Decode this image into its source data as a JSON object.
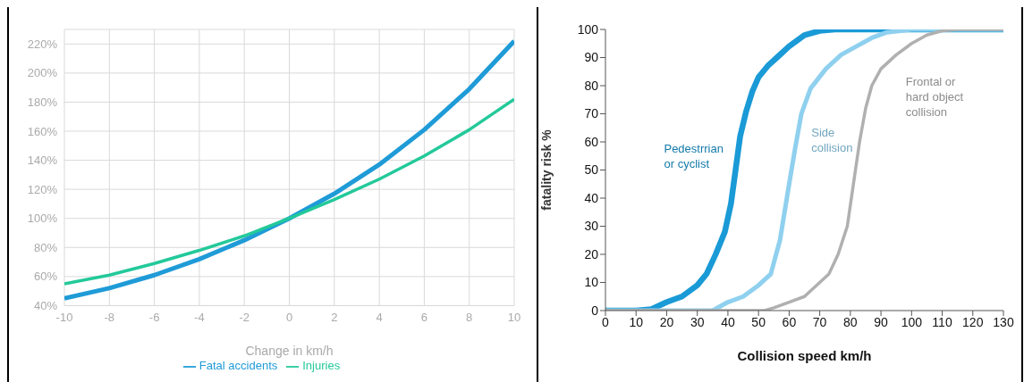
{
  "chart_data": [
    {
      "type": "line",
      "xlabel": "Change in km/h",
      "x": [
        -10,
        -8,
        -6,
        -4,
        -2,
        0,
        2,
        4,
        6,
        8,
        10
      ],
      "series": [
        {
          "name": "Fatal accidents",
          "color": "#1f9bd7",
          "values": [
            45,
            52,
            61,
            72,
            85,
            100,
            117,
            137,
            161,
            189,
            222
          ]
        },
        {
          "name": "Injuries",
          "color": "#23c99a",
          "values": [
            55,
            61,
            69,
            78,
            88,
            100,
            113,
            127,
            143,
            161,
            182
          ]
        }
      ],
      "xlim": [
        -10,
        10
      ],
      "xticks": [
        -10,
        -8,
        -6,
        -4,
        -2,
        0,
        2,
        4,
        6,
        8,
        10
      ],
      "ylim": [
        40,
        230
      ],
      "yticks": [
        {
          "value": 40,
          "label": "40%"
        },
        {
          "value": 60,
          "label": "60%"
        },
        {
          "value": 80,
          "label": "80%"
        },
        {
          "value": 100,
          "label": "100%"
        },
        {
          "value": 120,
          "label": "120%"
        },
        {
          "value": 140,
          "label": "140%"
        },
        {
          "value": 160,
          "label": "160%"
        },
        {
          "value": 180,
          "label": "180%"
        },
        {
          "value": 200,
          "label": "200%"
        },
        {
          "value": 220,
          "label": "220%"
        }
      ],
      "grid": true,
      "legend": "bottom",
      "marker": "none",
      "line_style": "solid"
    },
    {
      "type": "line",
      "xlabel": "Collision speed km/h",
      "ylabel": "fatality risk %",
      "series": [
        {
          "name": "Pedestrrian\nor cyclist",
          "color": "#1a9ad6",
          "x": [
            0,
            10,
            15,
            20,
            25,
            30,
            33,
            36,
            39,
            41,
            42.5,
            44,
            46,
            48,
            50,
            53,
            56,
            60,
            65,
            70,
            75,
            130
          ],
          "values": [
            0,
            0,
            0.5,
            3,
            5,
            9,
            13,
            20,
            28,
            38,
            50,
            62,
            71,
            78,
            83,
            87,
            90,
            94,
            98,
            99.5,
            100,
            100
          ]
        },
        {
          "name": "Side\ncollision",
          "color": "#8fd0ef",
          "x": [
            0,
            35,
            40,
            45,
            50,
            54,
            57,
            60,
            62,
            64,
            67,
            72,
            77,
            82,
            87,
            92,
            100,
            130
          ],
          "values": [
            0,
            0,
            3,
            5,
            9,
            13,
            25,
            45,
            58,
            70,
            79,
            86,
            91,
            94,
            97,
            99,
            100,
            100
          ]
        },
        {
          "name": "Frontal or\nhard object\ncollision",
          "color": "#b0b0b0",
          "x": [
            0,
            52,
            55,
            60,
            65,
            70,
            73,
            76,
            79,
            81,
            83,
            85,
            87,
            90,
            95,
            100,
            105,
            110,
            115,
            130
          ],
          "values": [
            0,
            0,
            1,
            3,
            5,
            10,
            13,
            20,
            30,
            45,
            60,
            72,
            80,
            86,
            91,
            95,
            98,
            99.5,
            100,
            100
          ]
        }
      ],
      "xlim": [
        0,
        130
      ],
      "xticks": [
        0,
        10,
        20,
        30,
        40,
        50,
        60,
        70,
        80,
        90,
        100,
        110,
        120,
        130
      ],
      "ylim": [
        0,
        100
      ],
      "yticks": [
        0,
        10,
        20,
        30,
        40,
        50,
        60,
        70,
        80,
        90,
        100
      ],
      "grid": false,
      "legend": false,
      "marker": "none",
      "line_style": "solid"
    }
  ]
}
